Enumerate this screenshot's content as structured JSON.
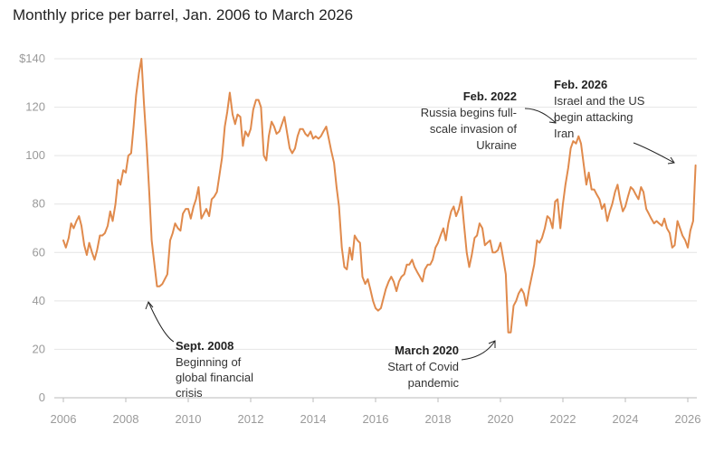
{
  "chart_data": {
    "type": "line",
    "title": "Monthly price per barrel, Jan. 2006 to March 2026",
    "xlabel": "",
    "ylabel": "",
    "xlim": [
      2006,
      2026.25
    ],
    "ylim": [
      0,
      140
    ],
    "x_ticks": [
      2006,
      2008,
      2010,
      2012,
      2014,
      2016,
      2018,
      2020,
      2022,
      2024,
      2026
    ],
    "x_tick_labels": [
      "2006",
      "2008",
      "2010",
      "2012",
      "2014",
      "2016",
      "2018",
      "2020",
      "2022",
      "2024",
      "2026"
    ],
    "y_ticks": [
      0,
      20,
      40,
      60,
      80,
      100,
      120,
      140
    ],
    "y_tick_labels": [
      "0",
      "20",
      "40",
      "60",
      "80",
      "100",
      "120",
      "$140"
    ],
    "grid": true,
    "line_color": "#e08a4c",
    "series": [
      {
        "name": "",
        "points": [
          [
            2006.0,
            65
          ],
          [
            2006.08,
            62
          ],
          [
            2006.17,
            66
          ],
          [
            2006.25,
            72
          ],
          [
            2006.33,
            70
          ],
          [
            2006.42,
            73
          ],
          [
            2006.5,
            75
          ],
          [
            2006.58,
            71
          ],
          [
            2006.67,
            63
          ],
          [
            2006.75,
            59
          ],
          [
            2006.83,
            64
          ],
          [
            2006.92,
            60
          ],
          [
            2007.0,
            57
          ],
          [
            2007.08,
            61
          ],
          [
            2007.17,
            67
          ],
          [
            2007.25,
            67
          ],
          [
            2007.33,
            68
          ],
          [
            2007.42,
            71
          ],
          [
            2007.5,
            77
          ],
          [
            2007.58,
            73
          ],
          [
            2007.67,
            80
          ],
          [
            2007.75,
            90
          ],
          [
            2007.83,
            88
          ],
          [
            2007.92,
            94
          ],
          [
            2008.0,
            93
          ],
          [
            2008.08,
            100
          ],
          [
            2008.17,
            101
          ],
          [
            2008.25,
            112
          ],
          [
            2008.33,
            125
          ],
          [
            2008.42,
            134
          ],
          [
            2008.5,
            140
          ],
          [
            2008.58,
            122
          ],
          [
            2008.67,
            104
          ],
          [
            2008.75,
            85
          ],
          [
            2008.83,
            65
          ],
          [
            2008.92,
            55
          ],
          [
            2009.0,
            46
          ],
          [
            2009.08,
            46
          ],
          [
            2009.17,
            47
          ],
          [
            2009.25,
            49
          ],
          [
            2009.33,
            51
          ],
          [
            2009.42,
            65
          ],
          [
            2009.5,
            68
          ],
          [
            2009.58,
            72
          ],
          [
            2009.67,
            70
          ],
          [
            2009.75,
            69
          ],
          [
            2009.83,
            76
          ],
          [
            2009.92,
            78
          ],
          [
            2010.0,
            78
          ],
          [
            2010.08,
            74
          ],
          [
            2010.17,
            79
          ],
          [
            2010.25,
            82
          ],
          [
            2010.33,
            87
          ],
          [
            2010.42,
            74
          ],
          [
            2010.5,
            76
          ],
          [
            2010.58,
            78
          ],
          [
            2010.67,
            75
          ],
          [
            2010.75,
            82
          ],
          [
            2010.83,
            83
          ],
          [
            2010.92,
            85
          ],
          [
            2011.0,
            92
          ],
          [
            2011.08,
            99
          ],
          [
            2011.17,
            112
          ],
          [
            2011.25,
            118
          ],
          [
            2011.33,
            126
          ],
          [
            2011.42,
            117
          ],
          [
            2011.5,
            113
          ],
          [
            2011.58,
            117
          ],
          [
            2011.67,
            116
          ],
          [
            2011.75,
            104
          ],
          [
            2011.83,
            110
          ],
          [
            2011.92,
            108
          ],
          [
            2012.0,
            111
          ],
          [
            2012.08,
            119
          ],
          [
            2012.17,
            123
          ],
          [
            2012.25,
            123
          ],
          [
            2012.33,
            120
          ],
          [
            2012.42,
            100
          ],
          [
            2012.5,
            98
          ],
          [
            2012.58,
            108
          ],
          [
            2012.67,
            114
          ],
          [
            2012.75,
            112
          ],
          [
            2012.83,
            109
          ],
          [
            2012.92,
            110
          ],
          [
            2013.0,
            113
          ],
          [
            2013.08,
            116
          ],
          [
            2013.17,
            109
          ],
          [
            2013.25,
            103
          ],
          [
            2013.33,
            101
          ],
          [
            2013.42,
            103
          ],
          [
            2013.5,
            108
          ],
          [
            2013.58,
            111
          ],
          [
            2013.67,
            111
          ],
          [
            2013.75,
            109
          ],
          [
            2013.83,
            108
          ],
          [
            2013.92,
            110
          ],
          [
            2014.0,
            107
          ],
          [
            2014.08,
            108
          ],
          [
            2014.17,
            107
          ],
          [
            2014.25,
            108
          ],
          [
            2014.33,
            110
          ],
          [
            2014.42,
            112
          ],
          [
            2014.5,
            107
          ],
          [
            2014.58,
            102
          ],
          [
            2014.67,
            97
          ],
          [
            2014.75,
            87
          ],
          [
            2014.83,
            79
          ],
          [
            2014.92,
            62
          ],
          [
            2015.0,
            54
          ],
          [
            2015.08,
            53
          ],
          [
            2015.17,
            62
          ],
          [
            2015.25,
            57
          ],
          [
            2015.33,
            67
          ],
          [
            2015.42,
            65
          ],
          [
            2015.5,
            64
          ],
          [
            2015.58,
            50
          ],
          [
            2015.67,
            47
          ],
          [
            2015.75,
            49
          ],
          [
            2015.83,
            45
          ],
          [
            2015.92,
            40
          ],
          [
            2016.0,
            37
          ],
          [
            2016.08,
            36
          ],
          [
            2016.17,
            37
          ],
          [
            2016.25,
            41
          ],
          [
            2016.33,
            45
          ],
          [
            2016.42,
            48
          ],
          [
            2016.5,
            50
          ],
          [
            2016.58,
            48
          ],
          [
            2016.67,
            44
          ],
          [
            2016.75,
            48
          ],
          [
            2016.83,
            50
          ],
          [
            2016.92,
            51
          ],
          [
            2017.0,
            55
          ],
          [
            2017.08,
            55
          ],
          [
            2017.17,
            57
          ],
          [
            2017.25,
            54
          ],
          [
            2017.33,
            52
          ],
          [
            2017.42,
            50
          ],
          [
            2017.5,
            48
          ],
          [
            2017.58,
            53
          ],
          [
            2017.67,
            55
          ],
          [
            2017.75,
            55
          ],
          [
            2017.83,
            57
          ],
          [
            2017.92,
            62
          ],
          [
            2018.0,
            64
          ],
          [
            2018.08,
            67
          ],
          [
            2018.17,
            70
          ],
          [
            2018.25,
            65
          ],
          [
            2018.33,
            72
          ],
          [
            2018.42,
            77
          ],
          [
            2018.5,
            79
          ],
          [
            2018.58,
            75
          ],
          [
            2018.67,
            78
          ],
          [
            2018.75,
            83
          ],
          [
            2018.83,
            72
          ],
          [
            2018.92,
            60
          ],
          [
            2019.0,
            54
          ],
          [
            2019.08,
            59
          ],
          [
            2019.17,
            66
          ],
          [
            2019.25,
            67
          ],
          [
            2019.33,
            72
          ],
          [
            2019.42,
            70
          ],
          [
            2019.5,
            63
          ],
          [
            2019.58,
            64
          ],
          [
            2019.67,
            65
          ],
          [
            2019.75,
            60
          ],
          [
            2019.83,
            60
          ],
          [
            2019.92,
            61
          ],
          [
            2020.0,
            64
          ],
          [
            2020.08,
            58
          ],
          [
            2020.17,
            51
          ],
          [
            2020.25,
            27
          ],
          [
            2020.33,
            27
          ],
          [
            2020.42,
            38
          ],
          [
            2020.5,
            40
          ],
          [
            2020.58,
            43
          ],
          [
            2020.67,
            45
          ],
          [
            2020.75,
            43
          ],
          [
            2020.83,
            38
          ],
          [
            2020.92,
            45
          ],
          [
            2021.0,
            50
          ],
          [
            2021.08,
            55
          ],
          [
            2021.17,
            65
          ],
          [
            2021.25,
            64
          ],
          [
            2021.33,
            66
          ],
          [
            2021.42,
            70
          ],
          [
            2021.5,
            75
          ],
          [
            2021.58,
            74
          ],
          [
            2021.67,
            70
          ],
          [
            2021.75,
            81
          ],
          [
            2021.83,
            82
          ],
          [
            2021.92,
            70
          ],
          [
            2022.0,
            80
          ],
          [
            2022.08,
            88
          ],
          [
            2022.17,
            95
          ],
          [
            2022.25,
            103
          ],
          [
            2022.33,
            106
          ],
          [
            2022.42,
            105
          ],
          [
            2022.5,
            108
          ],
          [
            2022.58,
            105
          ],
          [
            2022.67,
            96
          ],
          [
            2022.75,
            88
          ],
          [
            2022.83,
            93
          ],
          [
            2022.92,
            86
          ],
          [
            2023.0,
            86
          ],
          [
            2023.08,
            84
          ],
          [
            2023.17,
            82
          ],
          [
            2023.25,
            78
          ],
          [
            2023.33,
            80
          ],
          [
            2023.42,
            73
          ],
          [
            2023.5,
            77
          ],
          [
            2023.58,
            80
          ],
          [
            2023.67,
            85
          ],
          [
            2023.75,
            88
          ],
          [
            2023.83,
            82
          ],
          [
            2023.92,
            77
          ],
          [
            2024.0,
            79
          ],
          [
            2024.08,
            83
          ],
          [
            2024.17,
            87
          ],
          [
            2024.25,
            86
          ],
          [
            2024.33,
            84
          ],
          [
            2024.42,
            82
          ],
          [
            2024.5,
            87
          ],
          [
            2024.58,
            85
          ],
          [
            2024.67,
            78
          ],
          [
            2024.75,
            76
          ],
          [
            2024.83,
            74
          ],
          [
            2024.92,
            72
          ],
          [
            2025.0,
            73
          ],
          [
            2025.08,
            72
          ],
          [
            2025.17,
            71
          ],
          [
            2025.25,
            74
          ],
          [
            2025.33,
            70
          ],
          [
            2025.42,
            68
          ],
          [
            2025.5,
            62
          ],
          [
            2025.58,
            63
          ],
          [
            2025.67,
            73
          ],
          [
            2025.75,
            70
          ],
          [
            2025.83,
            67
          ],
          [
            2025.92,
            65
          ],
          [
            2026.0,
            62
          ],
          [
            2026.08,
            69
          ],
          [
            2026.17,
            73
          ],
          [
            2026.25,
            96
          ]
        ]
      }
    ],
    "annotations": [
      {
        "head": "Sept. 2008",
        "lines": [
          "Beginning of",
          "global financial",
          "crisis"
        ]
      },
      {
        "head": "March 2020",
        "lines": [
          "Start of Covid",
          "pandemic"
        ]
      },
      {
        "head": "Feb. 2022",
        "lines": [
          "Russia begins full-",
          "scale invasion of",
          "Ukraine"
        ]
      },
      {
        "head": "Feb. 2026",
        "lines": [
          "Israel and the US",
          "begin attacking",
          "Iran"
        ]
      }
    ]
  }
}
